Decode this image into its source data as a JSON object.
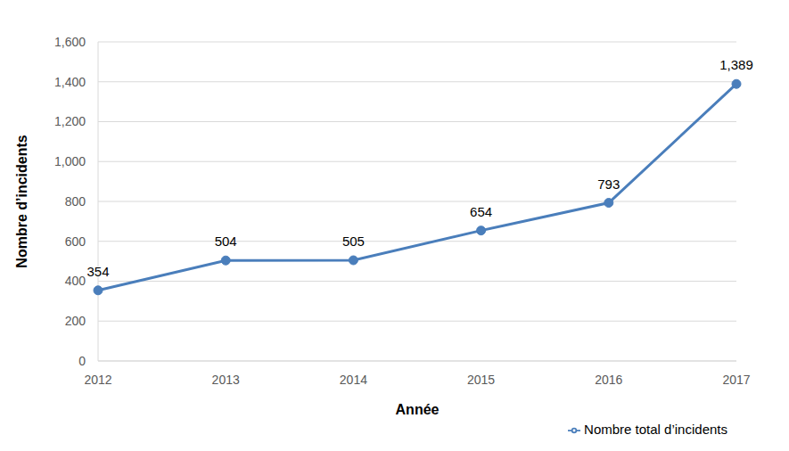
{
  "chart_data": {
    "type": "line",
    "categories": [
      "2012",
      "2013",
      "2014",
      "2015",
      "2016",
      "2017"
    ],
    "series": [
      {
        "name": "Nombre total d’incidents",
        "color": "#4a7ebb",
        "marker": "circle",
        "values": [
          354,
          504,
          505,
          654,
          793,
          1389
        ],
        "value_labels": [
          "354",
          "504",
          "505",
          "654",
          "793",
          "1,389"
        ]
      }
    ],
    "x_label": "Année",
    "y_label": "Nombre d’incidents",
    "ylim": [
      0,
      1600
    ],
    "yticks": [
      0,
      200,
      400,
      600,
      800,
      {
        "value": 1000,
        "label": "1,000"
      },
      {
        "value": 1200,
        "label": "1,200"
      },
      {
        "value": 1400,
        "label": "1,400"
      },
      {
        "value": 1600,
        "label": "1,600"
      }
    ],
    "grid": true,
    "legend": "bottom right",
    "data_labels": true
  }
}
